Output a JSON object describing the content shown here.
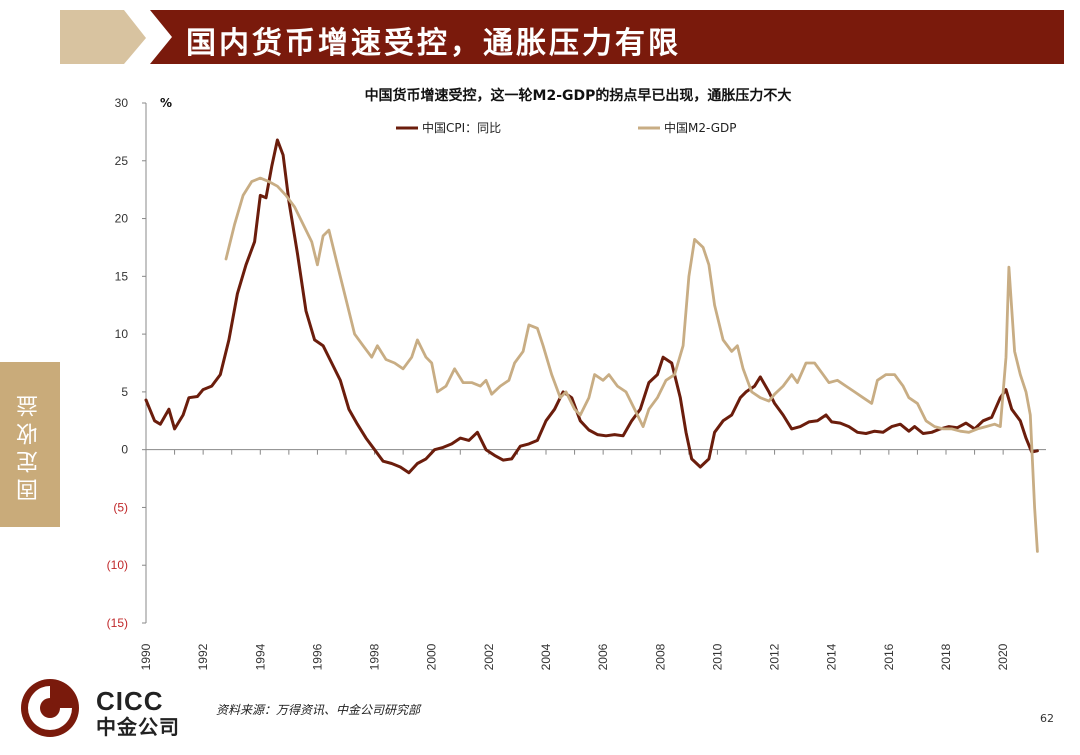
{
  "header": {
    "title": "国内货币增速受控，通胀压力有限",
    "colors": {
      "banner": "#7a1a0c",
      "chevron": "#d8c3a0"
    }
  },
  "side_tab": {
    "label": "固定收益",
    "color": "#c9ab7a"
  },
  "footer": {
    "logo_en": "CICC",
    "logo_cn": "中金公司",
    "source": "资料来源：万得资讯、中金公司研究部",
    "page_number": "62"
  },
  "chart_data": {
    "type": "line",
    "title": "中国货币增速受控，这一轮M2-GDP的拐点早已出现，通胀压力不大",
    "unit_label": "%",
    "ylim": [
      -15,
      30
    ],
    "y_ticks": [
      30,
      25,
      20,
      15,
      10,
      5,
      0,
      -5,
      -10,
      -15
    ],
    "y_tick_labels": [
      "30",
      "25",
      "20",
      "15",
      "10",
      "5",
      "0",
      "(5)",
      "(10)",
      "(15)"
    ],
    "xlim": [
      1990,
      2021.5
    ],
    "x_ticks": [
      "1990",
      "1992",
      "1994",
      "1996",
      "1998",
      "2000",
      "2002",
      "2004",
      "2006",
      "2008",
      "2010",
      "2012",
      "2014",
      "2016",
      "2018",
      "2020"
    ],
    "legend_position": "top-center",
    "grid": false,
    "series": [
      {
        "name": "中国CPI：同比",
        "color": "#6b1d0c",
        "points": [
          [
            1990.0,
            4.3
          ],
          [
            1990.3,
            2.5
          ],
          [
            1990.5,
            2.2
          ],
          [
            1990.8,
            3.5
          ],
          [
            1991.0,
            1.8
          ],
          [
            1991.3,
            3.0
          ],
          [
            1991.5,
            4.5
          ],
          [
            1991.8,
            4.6
          ],
          [
            1992.0,
            5.2
          ],
          [
            1992.3,
            5.5
          ],
          [
            1992.6,
            6.5
          ],
          [
            1992.9,
            9.5
          ],
          [
            1993.2,
            13.5
          ],
          [
            1993.5,
            16.0
          ],
          [
            1993.8,
            18.0
          ],
          [
            1994.0,
            22.0
          ],
          [
            1994.2,
            21.8
          ],
          [
            1994.4,
            24.5
          ],
          [
            1994.6,
            26.8
          ],
          [
            1994.8,
            25.5
          ],
          [
            1995.0,
            21.5
          ],
          [
            1995.3,
            17.0
          ],
          [
            1995.6,
            12.0
          ],
          [
            1995.9,
            9.5
          ],
          [
            1996.2,
            9.0
          ],
          [
            1996.5,
            7.5
          ],
          [
            1996.8,
            6.0
          ],
          [
            1997.1,
            3.5
          ],
          [
            1997.4,
            2.2
          ],
          [
            1997.7,
            1.0
          ],
          [
            1998.0,
            0.0
          ],
          [
            1998.3,
            -1.0
          ],
          [
            1998.6,
            -1.2
          ],
          [
            1998.9,
            -1.5
          ],
          [
            1999.2,
            -2.0
          ],
          [
            1999.5,
            -1.2
          ],
          [
            1999.8,
            -0.8
          ],
          [
            2000.1,
            0.0
          ],
          [
            2000.4,
            0.2
          ],
          [
            2000.7,
            0.5
          ],
          [
            2001.0,
            1.0
          ],
          [
            2001.3,
            0.8
          ],
          [
            2001.6,
            1.5
          ],
          [
            2001.9,
            0.0
          ],
          [
            2002.2,
            -0.5
          ],
          [
            2002.5,
            -0.9
          ],
          [
            2002.8,
            -0.8
          ],
          [
            2003.1,
            0.3
          ],
          [
            2003.4,
            0.5
          ],
          [
            2003.7,
            0.8
          ],
          [
            2004.0,
            2.5
          ],
          [
            2004.3,
            3.5
          ],
          [
            2004.6,
            5.0
          ],
          [
            2004.9,
            4.5
          ],
          [
            2005.2,
            2.5
          ],
          [
            2005.5,
            1.7
          ],
          [
            2005.8,
            1.3
          ],
          [
            2006.1,
            1.2
          ],
          [
            2006.4,
            1.3
          ],
          [
            2006.7,
            1.2
          ],
          [
            2007.0,
            2.5
          ],
          [
            2007.3,
            3.5
          ],
          [
            2007.6,
            5.8
          ],
          [
            2007.9,
            6.5
          ],
          [
            2008.1,
            8.0
          ],
          [
            2008.4,
            7.5
          ],
          [
            2008.7,
            4.5
          ],
          [
            2008.9,
            1.5
          ],
          [
            2009.1,
            -0.8
          ],
          [
            2009.4,
            -1.5
          ],
          [
            2009.7,
            -0.8
          ],
          [
            2009.9,
            1.5
          ],
          [
            2010.2,
            2.5
          ],
          [
            2010.5,
            3.0
          ],
          [
            2010.8,
            4.5
          ],
          [
            2011.0,
            5.0
          ],
          [
            2011.3,
            5.5
          ],
          [
            2011.5,
            6.3
          ],
          [
            2011.8,
            5.0
          ],
          [
            2012.0,
            4.0
          ],
          [
            2012.3,
            3.0
          ],
          [
            2012.6,
            1.8
          ],
          [
            2012.9,
            2.0
          ],
          [
            2013.2,
            2.4
          ],
          [
            2013.5,
            2.5
          ],
          [
            2013.8,
            3.0
          ],
          [
            2014.0,
            2.4
          ],
          [
            2014.3,
            2.3
          ],
          [
            2014.6,
            2.0
          ],
          [
            2014.9,
            1.5
          ],
          [
            2015.2,
            1.4
          ],
          [
            2015.5,
            1.6
          ],
          [
            2015.8,
            1.5
          ],
          [
            2016.1,
            2.0
          ],
          [
            2016.4,
            2.2
          ],
          [
            2016.7,
            1.6
          ],
          [
            2016.9,
            2.0
          ],
          [
            2017.2,
            1.4
          ],
          [
            2017.5,
            1.5
          ],
          [
            2017.8,
            1.8
          ],
          [
            2018.1,
            2.0
          ],
          [
            2018.4,
            1.9
          ],
          [
            2018.7,
            2.3
          ],
          [
            2019.0,
            1.8
          ],
          [
            2019.3,
            2.5
          ],
          [
            2019.6,
            2.8
          ],
          [
            2019.9,
            4.5
          ],
          [
            2020.1,
            5.2
          ],
          [
            2020.3,
            3.5
          ],
          [
            2020.6,
            2.5
          ],
          [
            2020.8,
            1.0
          ],
          [
            2021.0,
            -0.2
          ],
          [
            2021.2,
            -0.1
          ]
        ]
      },
      {
        "name": "中国M2-GDP",
        "color": "#c8ad84",
        "points": [
          [
            1992.8,
            16.5
          ],
          [
            1993.1,
            19.5
          ],
          [
            1993.4,
            22.0
          ],
          [
            1993.7,
            23.2
          ],
          [
            1994.0,
            23.5
          ],
          [
            1994.3,
            23.2
          ],
          [
            1994.6,
            22.8
          ],
          [
            1994.9,
            22.0
          ],
          [
            1995.2,
            21.0
          ],
          [
            1995.5,
            19.5
          ],
          [
            1995.8,
            18.0
          ],
          [
            1996.0,
            16.0
          ],
          [
            1996.2,
            18.5
          ],
          [
            1996.4,
            19.0
          ],
          [
            1996.7,
            16.0
          ],
          [
            1997.0,
            13.0
          ],
          [
            1997.3,
            10.0
          ],
          [
            1997.6,
            9.0
          ],
          [
            1997.9,
            8.0
          ],
          [
            1998.1,
            9.0
          ],
          [
            1998.4,
            7.8
          ],
          [
            1998.7,
            7.5
          ],
          [
            1999.0,
            7.0
          ],
          [
            1999.3,
            8.0
          ],
          [
            1999.5,
            9.5
          ],
          [
            1999.8,
            8.0
          ],
          [
            2000.0,
            7.5
          ],
          [
            2000.2,
            5.0
          ],
          [
            2000.5,
            5.5
          ],
          [
            2000.8,
            7.0
          ],
          [
            2001.1,
            5.8
          ],
          [
            2001.4,
            5.8
          ],
          [
            2001.7,
            5.5
          ],
          [
            2001.9,
            6.0
          ],
          [
            2002.1,
            4.8
          ],
          [
            2002.4,
            5.5
          ],
          [
            2002.7,
            6.0
          ],
          [
            2002.9,
            7.5
          ],
          [
            2003.2,
            8.5
          ],
          [
            2003.4,
            10.8
          ],
          [
            2003.7,
            10.5
          ],
          [
            2003.9,
            9.0
          ],
          [
            2004.2,
            6.5
          ],
          [
            2004.5,
            4.5
          ],
          [
            2004.7,
            5.0
          ],
          [
            2005.0,
            3.5
          ],
          [
            2005.2,
            3.0
          ],
          [
            2005.5,
            4.5
          ],
          [
            2005.7,
            6.5
          ],
          [
            2006.0,
            6.0
          ],
          [
            2006.2,
            6.5
          ],
          [
            2006.5,
            5.5
          ],
          [
            2006.8,
            5.0
          ],
          [
            2007.1,
            3.5
          ],
          [
            2007.4,
            2.0
          ],
          [
            2007.6,
            3.5
          ],
          [
            2007.9,
            4.5
          ],
          [
            2008.2,
            6.0
          ],
          [
            2008.5,
            6.5
          ],
          [
            2008.8,
            9.0
          ],
          [
            2009.0,
            15.0
          ],
          [
            2009.2,
            18.2
          ],
          [
            2009.5,
            17.5
          ],
          [
            2009.7,
            16.0
          ],
          [
            2009.9,
            12.5
          ],
          [
            2010.2,
            9.5
          ],
          [
            2010.5,
            8.5
          ],
          [
            2010.7,
            9.0
          ],
          [
            2010.9,
            7.0
          ],
          [
            2011.2,
            5.0
          ],
          [
            2011.5,
            4.5
          ],
          [
            2011.8,
            4.2
          ],
          [
            2012.0,
            4.8
          ],
          [
            2012.3,
            5.5
          ],
          [
            2012.6,
            6.5
          ],
          [
            2012.8,
            5.8
          ],
          [
            2013.1,
            7.5
          ],
          [
            2013.4,
            7.5
          ],
          [
            2013.7,
            6.5
          ],
          [
            2013.9,
            5.8
          ],
          [
            2014.2,
            6.0
          ],
          [
            2014.5,
            5.5
          ],
          [
            2014.8,
            5.0
          ],
          [
            2015.1,
            4.5
          ],
          [
            2015.4,
            4.0
          ],
          [
            2015.6,
            6.0
          ],
          [
            2015.9,
            6.5
          ],
          [
            2016.2,
            6.5
          ],
          [
            2016.5,
            5.5
          ],
          [
            2016.7,
            4.5
          ],
          [
            2017.0,
            4.0
          ],
          [
            2017.3,
            2.5
          ],
          [
            2017.6,
            2.0
          ],
          [
            2017.9,
            1.8
          ],
          [
            2018.2,
            1.8
          ],
          [
            2018.5,
            1.6
          ],
          [
            2018.8,
            1.5
          ],
          [
            2019.1,
            1.8
          ],
          [
            2019.4,
            2.0
          ],
          [
            2019.7,
            2.2
          ],
          [
            2019.9,
            2.0
          ],
          [
            2020.1,
            8.0
          ],
          [
            2020.2,
            15.8
          ],
          [
            2020.4,
            8.5
          ],
          [
            2020.6,
            6.5
          ],
          [
            2020.8,
            5.0
          ],
          [
            2020.95,
            3.0
          ],
          [
            2021.1,
            -5.0
          ],
          [
            2021.2,
            -8.8
          ]
        ]
      }
    ]
  }
}
